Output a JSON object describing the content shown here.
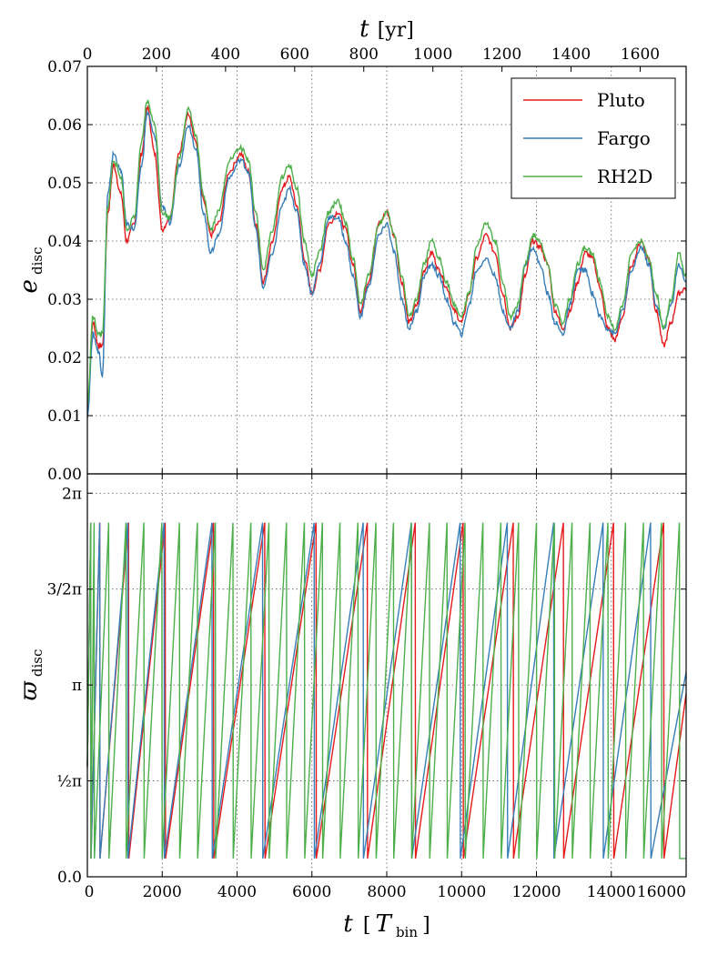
{
  "chart_data": [
    {
      "type": "line",
      "panel": "top",
      "ylabel_main": "e",
      "ylabel_sub": "disc",
      "xlabel_top_main": "t",
      "xlabel_top_unit": "[yr]",
      "xlim": [
        0,
        16000
      ],
      "ylim": [
        0,
        0.07
      ],
      "top_xlim_yr": [
        0,
        1733
      ],
      "grid": true,
      "legend_position": "top-right",
      "y_ticks": [
        "0.00",
        "0.01",
        "0.02",
        "0.03",
        "0.04",
        "0.05",
        "0.06",
        "0.07"
      ],
      "top_x_ticks": [
        "0",
        "200",
        "400",
        "600",
        "800",
        "1000",
        "1200",
        "1400",
        "1600"
      ],
      "series": [
        {
          "name": "Pluto",
          "color": "#e41a1c",
          "x": [
            0,
            150,
            300,
            400,
            550,
            700,
            900,
            1050,
            1250,
            1450,
            1600,
            1800,
            2000,
            2200,
            2450,
            2700,
            2900,
            3100,
            3300,
            3500,
            3800,
            4100,
            4300,
            4500,
            4700,
            4950,
            5200,
            5400,
            5600,
            5800,
            6000,
            6200,
            6450,
            6700,
            6900,
            7100,
            7300,
            7500,
            7800,
            8000,
            8200,
            8400,
            8600,
            8800,
            9000,
            9200,
            9400,
            9600,
            9800,
            10000,
            10200,
            10400,
            10650,
            10900,
            11100,
            11300,
            11500,
            11700,
            11900,
            12100,
            12300,
            12500,
            12700,
            12900,
            13100,
            13300,
            13500,
            13700,
            13900,
            14100,
            14300,
            14550,
            14800,
            15000,
            15200,
            15400,
            15600,
            15800,
            16000
          ],
          "y": [
            0.011,
            0.026,
            0.022,
            0.022,
            0.045,
            0.053,
            0.048,
            0.04,
            0.043,
            0.055,
            0.063,
            0.055,
            0.042,
            0.044,
            0.055,
            0.062,
            0.057,
            0.047,
            0.041,
            0.043,
            0.052,
            0.055,
            0.052,
            0.043,
            0.033,
            0.04,
            0.049,
            0.051,
            0.046,
            0.037,
            0.031,
            0.035,
            0.043,
            0.045,
            0.042,
            0.036,
            0.028,
            0.033,
            0.043,
            0.045,
            0.041,
            0.033,
            0.026,
            0.029,
            0.035,
            0.038,
            0.035,
            0.032,
            0.028,
            0.026,
            0.031,
            0.037,
            0.041,
            0.038,
            0.031,
            0.025,
            0.027,
            0.034,
            0.04,
            0.039,
            0.036,
            0.028,
            0.025,
            0.028,
            0.033,
            0.038,
            0.037,
            0.032,
            0.025,
            0.023,
            0.027,
            0.036,
            0.04,
            0.037,
            0.028,
            0.022,
            0.026,
            0.031,
            0.032
          ]
        },
        {
          "name": "Fargo",
          "color": "#377eb8",
          "x": [
            0,
            150,
            300,
            400,
            550,
            700,
            900,
            1050,
            1250,
            1450,
            1600,
            1800,
            2000,
            2200,
            2450,
            2700,
            2900,
            3100,
            3300,
            3500,
            3800,
            4100,
            4300,
            4500,
            4700,
            4950,
            5200,
            5400,
            5600,
            5800,
            6000,
            6200,
            6450,
            6700,
            6900,
            7100,
            7300,
            7500,
            7800,
            8000,
            8200,
            8400,
            8600,
            8800,
            9000,
            9200,
            9400,
            9600,
            9800,
            10000,
            10200,
            10400,
            10650,
            10900,
            11100,
            11300,
            11500,
            11700,
            11900,
            12100,
            12300,
            12500,
            12700,
            12900,
            13100,
            13300,
            13500,
            13700,
            13900,
            14100,
            14300,
            14550,
            14800,
            15000,
            15200,
            15400,
            15600,
            15800,
            16000
          ],
          "y": [
            0.01,
            0.024,
            0.021,
            0.017,
            0.048,
            0.055,
            0.052,
            0.043,
            0.042,
            0.053,
            0.062,
            0.058,
            0.046,
            0.043,
            0.053,
            0.06,
            0.056,
            0.045,
            0.038,
            0.041,
            0.051,
            0.054,
            0.052,
            0.042,
            0.032,
            0.038,
            0.046,
            0.049,
            0.045,
            0.036,
            0.031,
            0.036,
            0.044,
            0.044,
            0.04,
            0.034,
            0.027,
            0.032,
            0.041,
            0.043,
            0.038,
            0.03,
            0.025,
            0.028,
            0.034,
            0.036,
            0.034,
            0.03,
            0.026,
            0.024,
            0.029,
            0.035,
            0.037,
            0.034,
            0.028,
            0.025,
            0.028,
            0.036,
            0.039,
            0.036,
            0.031,
            0.026,
            0.024,
            0.029,
            0.035,
            0.035,
            0.031,
            0.027,
            0.025,
            0.024,
            0.028,
            0.035,
            0.039,
            0.036,
            0.029,
            0.025,
            0.029,
            0.036,
            0.033
          ]
        },
        {
          "name": "RH2D",
          "color": "#4daf4a",
          "x": [
            0,
            150,
            300,
            400,
            550,
            700,
            900,
            1050,
            1250,
            1450,
            1600,
            1800,
            2000,
            2200,
            2450,
            2700,
            2900,
            3100,
            3300,
            3500,
            3800,
            4100,
            4300,
            4500,
            4700,
            4950,
            5200,
            5400,
            5600,
            5800,
            6000,
            6200,
            6450,
            6700,
            6900,
            7100,
            7300,
            7500,
            7800,
            8000,
            8200,
            8400,
            8600,
            8800,
            9000,
            9200,
            9400,
            9600,
            9800,
            10000,
            10200,
            10400,
            10650,
            10900,
            11100,
            11300,
            11500,
            11700,
            11900,
            12100,
            12300,
            12500,
            12700,
            12900,
            13100,
            13300,
            13500,
            13700,
            13900,
            14100,
            14300,
            14550,
            14800,
            15000,
            15200,
            15400,
            15600,
            15800,
            16000
          ],
          "y": [
            0.012,
            0.027,
            0.024,
            0.024,
            0.046,
            0.054,
            0.051,
            0.042,
            0.044,
            0.057,
            0.064,
            0.06,
            0.045,
            0.044,
            0.054,
            0.063,
            0.058,
            0.048,
            0.042,
            0.045,
            0.054,
            0.056,
            0.054,
            0.045,
            0.035,
            0.042,
            0.051,
            0.053,
            0.049,
            0.04,
            0.034,
            0.038,
            0.045,
            0.047,
            0.043,
            0.037,
            0.029,
            0.034,
            0.043,
            0.045,
            0.041,
            0.034,
            0.027,
            0.03,
            0.036,
            0.04,
            0.037,
            0.033,
            0.029,
            0.027,
            0.031,
            0.039,
            0.043,
            0.04,
            0.033,
            0.027,
            0.029,
            0.036,
            0.041,
            0.04,
            0.036,
            0.029,
            0.026,
            0.03,
            0.036,
            0.039,
            0.038,
            0.033,
            0.027,
            0.025,
            0.029,
            0.038,
            0.04,
            0.037,
            0.031,
            0.025,
            0.03,
            0.038,
            0.034
          ]
        }
      ]
    },
    {
      "type": "line",
      "panel": "bottom",
      "ylabel_main": "ϖ",
      "ylabel_sub": "disc",
      "xlabel_main": "t",
      "xlabel_unit_open": "[",
      "xlabel_unit_main": "T",
      "xlabel_unit_sub": "bin",
      "xlabel_unit_close": "]",
      "xlim": [
        0,
        16000
      ],
      "ylim": [
        0,
        6.6
      ],
      "grid": true,
      "x_ticks": [
        "0",
        "2000",
        "4000",
        "6000",
        "8000",
        "10000",
        "12000",
        "14000",
        "16000"
      ],
      "y_ticks": [
        "0.0",
        "½π",
        "π",
        "3/2π",
        "2π"
      ],
      "y_tick_values": [
        0,
        1.5708,
        3.1416,
        4.7124,
        6.2832
      ],
      "wrap_top": 5.8,
      "wrap_bottom": 0.3,
      "series": [
        {
          "name": "Pluto",
          "color": "#e41a1c",
          "wrap_times": [
            90,
            330,
            1100,
            2080,
            3370,
            4740,
            6110,
            7480,
            8760,
            10040,
            11380,
            12720,
            14060,
            15400
          ],
          "end_value": 3.0
        },
        {
          "name": "Fargo",
          "color": "#377eb8",
          "wrap_times": [
            90,
            330,
            1080,
            2050,
            3330,
            4680,
            6060,
            7370,
            8660,
            9960,
            11220,
            12460,
            13780,
            15050
          ],
          "end_value": 3.35
        },
        {
          "name": "RH2D",
          "color": "#4daf4a",
          "wrap_times": [
            90,
            180,
            570,
            1030,
            1510,
            1990,
            2460,
            2940,
            3420,
            3890,
            4370,
            4850,
            5320,
            5800,
            6280,
            6750,
            7230,
            7710,
            8180,
            8660,
            9140,
            9610,
            10090,
            10570,
            11050,
            11520,
            12000,
            12480,
            12950,
            13430,
            13910,
            14380,
            14860,
            15340,
            15820
          ],
          "end_value": 0.3
        }
      ]
    }
  ]
}
